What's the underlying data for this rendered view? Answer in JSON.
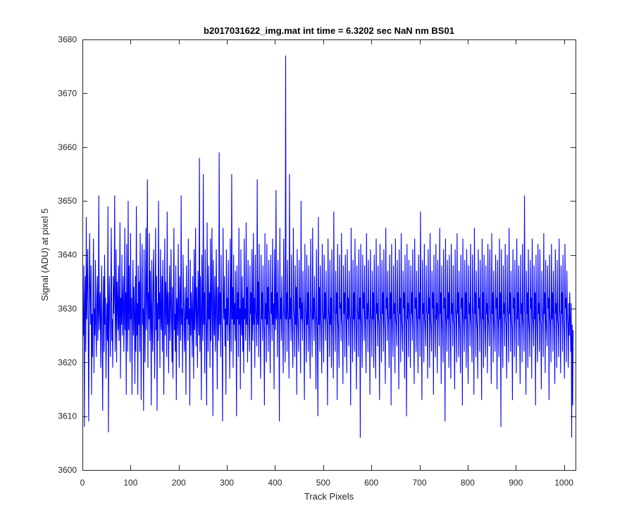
{
  "chart_data": {
    "type": "line",
    "title": "b2017031622_img.mat int time = 6.3202 sec  NaN nm BS01",
    "xlabel": "Track Pixels",
    "ylabel": "Signal (ADU) at pixel 5",
    "xlim": [
      0,
      1024
    ],
    "ylim": [
      3600,
      3680
    ],
    "xticks": [
      0,
      100,
      200,
      300,
      400,
      500,
      600,
      700,
      800,
      900,
      1000
    ],
    "yticks": [
      3600,
      3610,
      3620,
      3630,
      3640,
      3650,
      3660,
      3670,
      3680
    ],
    "grid": false,
    "legend": "none",
    "series": [
      {
        "color": "#0000ff",
        "x_start": 1,
        "x_step": 1,
        "values": [
          3629,
          3625,
          3638,
          3608,
          3631,
          3636,
          3622,
          3647,
          3628,
          3635,
          3641,
          3626,
          3609,
          3630,
          3644,
          3633,
          3627,
          3638,
          3614,
          3629,
          3621,
          3635,
          3643,
          3618,
          3630,
          3625,
          3639,
          3627,
          3621,
          3632,
          3636,
          3624,
          3629,
          3651,
          3626,
          3631,
          3633,
          3619,
          3628,
          3638,
          3624,
          3611,
          3629,
          3636,
          3622,
          3640,
          3627,
          3632,
          3617,
          3626,
          3631,
          3624,
          3649,
          3607,
          3630,
          3636,
          3628,
          3621,
          3633,
          3645,
          3624,
          3628,
          3619,
          3636,
          3629,
          3633,
          3651,
          3622,
          3628,
          3641,
          3620,
          3635,
          3631,
          3626,
          3638,
          3624,
          3629,
          3646,
          3617,
          3632,
          3627,
          3640,
          3625,
          3631,
          3636,
          3622,
          3628,
          3645,
          3626,
          3633,
          3614,
          3642,
          3629,
          3622,
          3650,
          3626,
          3638,
          3629,
          3620,
          3644,
          3628,
          3632,
          3614,
          3630,
          3639,
          3625,
          3634,
          3629,
          3616,
          3636,
          3622,
          3649,
          3625,
          3631,
          3614,
          3638,
          3627,
          3635,
          3622,
          3644,
          3629,
          3613,
          3633,
          3642,
          3627,
          3630,
          3611,
          3641,
          3628,
          3620,
          3634,
          3645,
          3626,
          3632,
          3654,
          3619,
          3633,
          3628,
          3644,
          3624,
          3637,
          3630,
          3612,
          3639,
          3627,
          3622,
          3635,
          3641,
          3628,
          3617,
          3630,
          3645,
          3626,
          3636,
          3611,
          3631,
          3624,
          3650,
          3628,
          3633,
          3619,
          3641,
          3629,
          3626,
          3636,
          3622,
          3639,
          3630,
          3614,
          3628,
          3643,
          3625,
          3635,
          3631,
          3621,
          3648,
          3627,
          3633,
          3618,
          3629,
          3638,
          3624,
          3630,
          3641,
          3628,
          3620,
          3634,
          3617,
          3631,
          3645,
          3626,
          3629,
          3622,
          3638,
          3613,
          3632,
          3630,
          3625,
          3642,
          3628,
          3619,
          3636,
          3631,
          3624,
          3651,
          3627,
          3630,
          3618,
          3640,
          3632,
          3626,
          3622,
          3634,
          3629,
          3614,
          3638,
          3628,
          3632,
          3624,
          3643,
          3627,
          3630,
          3612,
          3639,
          3625,
          3633,
          3629,
          3621,
          3636,
          3628,
          3617,
          3641,
          3626,
          3630,
          3645,
          3623,
          3634,
          3629,
          3619,
          3637,
          3631,
          3625,
          3658,
          3622,
          3636,
          3628,
          3613,
          3640,
          3630,
          3624,
          3655,
          3627,
          3633,
          3618,
          3641,
          3629,
          3626,
          3612,
          3646,
          3630,
          3622,
          3638,
          3628,
          3633,
          3619,
          3643,
          3624,
          3630,
          3645,
          3627,
          3610,
          3639,
          3631,
          3625,
          3636,
          3622,
          3629,
          3641,
          3628,
          3615,
          3634,
          3630,
          3624,
          3659,
          3627,
          3633,
          3621,
          3640,
          3629,
          3625,
          3609,
          3645,
          3631,
          3628,
          3636,
          3623,
          3630,
          3614,
          3641,
          3627,
          3632,
          3624,
          3639,
          3629,
          3626,
          3617,
          3643,
          3630,
          3622,
          3655,
          3628,
          3634,
          3619,
          3640,
          3627,
          3631,
          3624,
          3637,
          3629,
          3610,
          3638,
          3628,
          3633,
          3621,
          3645,
          3627,
          3630,
          3615,
          3641,
          3629,
          3625,
          3636,
          3622,
          3632,
          3618,
          3643,
          3628,
          3630,
          3624,
          3646,
          3627,
          3634,
          3620,
          3639,
          3630,
          3626,
          3622,
          3638,
          3629,
          3633,
          3613,
          3641,
          3628,
          3624,
          3644,
          3627,
          3632,
          3619,
          3640,
          3630,
          3628,
          3623,
          3654,
          3627,
          3635,
          3621,
          3642,
          3629,
          3626,
          3617,
          3640,
          3628,
          3633,
          3624,
          3638,
          3630,
          3625,
          3612,
          3644,
          3628,
          3631,
          3620,
          3642,
          3627,
          3634,
          3622,
          3639,
          3630,
          3626,
          3618,
          3640,
          3629,
          3633,
          3624,
          3643,
          3627,
          3631,
          3615,
          3641,
          3629,
          3626,
          3652,
          3628,
          3633,
          3621,
          3639,
          3630,
          3627,
          3609,
          3645,
          3628,
          3632,
          3624,
          3636,
          3629,
          3625,
          3618,
          3643,
          3630,
          3628,
          3620,
          3677,
          3628,
          3633,
          3622,
          3639,
          3630,
          3627,
          3617,
          3655,
          3628,
          3632,
          3624,
          3640,
          3629,
          3625,
          3619,
          3645,
          3630,
          3628,
          3621,
          3638,
          3627,
          3634,
          3614,
          3641,
          3629,
          3626,
          3622,
          3639,
          3630,
          3632,
          3618,
          3650,
          3628,
          3631,
          3624,
          3637,
          3629,
          3627,
          3613,
          3642,
          3630,
          3628,
          3620,
          3640,
          3627,
          3633,
          3622,
          3638,
          3629,
          3625,
          3617,
          3643,
          3630,
          3628,
          3621,
          3645,
          3628,
          3632,
          3624,
          3636,
          3630,
          3627,
          3615,
          3641,
          3629,
          3625,
          3610,
          3647,
          3627,
          3634,
          3622,
          3638,
          3629,
          3626,
          3618,
          3642,
          3630,
          3628,
          3620,
          3640,
          3628,
          3633,
          3624,
          3637,
          3629,
          3627,
          3612,
          3643,
          3630,
          3628,
          3621,
          3639,
          3627,
          3632,
          3619,
          3641,
          3629,
          3625,
          3617,
          3648,
          3630,
          3628,
          3622,
          3637,
          3629,
          3633,
          3613,
          3642,
          3628,
          3626,
          3619,
          3640,
          3630,
          3631,
          3624,
          3644,
          3628,
          3627,
          3616,
          3638,
          3629,
          3633,
          3621,
          3640,
          3630,
          3626,
          3618,
          3641,
          3628,
          3632,
          3623,
          3637,
          3629,
          3628,
          3612,
          3645,
          3630,
          3627,
          3620,
          3639,
          3628,
          3633,
          3622,
          3643,
          3629,
          3626,
          3615,
          3638,
          3630,
          3628,
          3621,
          3641,
          3628,
          3632,
          3606,
          3642,
          3629,
          3627,
          3619,
          3640,
          3630,
          3633,
          3624,
          3638,
          3629,
          3626,
          3618,
          3644,
          3628,
          3631,
          3622,
          3639,
          3630,
          3627,
          3614,
          3641,
          3629,
          3628,
          3621,
          3637,
          3628,
          3633,
          3619,
          3640,
          3630,
          3626,
          3617,
          3643,
          3629,
          3631,
          3623,
          3638,
          3628,
          3627,
          3613,
          3642,
          3630,
          3628,
          3620,
          3639,
          3629,
          3633,
          3622,
          3641,
          3628,
          3626,
          3616,
          3645,
          3630,
          3632,
          3624,
          3637,
          3629,
          3627,
          3619,
          3640,
          3628,
          3633,
          3612,
          3642,
          3630,
          3626,
          3621,
          3638,
          3629,
          3631,
          3618,
          3643,
          3628,
          3627,
          3623,
          3639,
          3630,
          3628,
          3615,
          3641,
          3629,
          3632,
          3620,
          3644,
          3628,
          3626,
          3622,
          3637,
          3630,
          3633,
          3617,
          3640,
          3629,
          3627,
          3610,
          3642,
          3628,
          3631,
          3621,
          3639,
          3630,
          3628,
          3619,
          3638,
          3629,
          3633,
          3624,
          3641,
          3628,
          3626,
          3616,
          3643,
          3630,
          3632,
          3622,
          3637,
          3629,
          3627,
          3618,
          3640,
          3628,
          3633,
          3621,
          3648,
          3630,
          3626,
          3613,
          3639,
          3629,
          3631,
          3620,
          3642,
          3628,
          3627,
          3623,
          3638,
          3630,
          3628,
          3617,
          3641,
          3629,
          3632,
          3619,
          3644,
          3628,
          3626,
          3622,
          3637,
          3630,
          3633,
          3614,
          3640,
          3629,
          3627,
          3621,
          3642,
          3628,
          3631,
          3618,
          3639,
          3630,
          3628,
          3623,
          3645,
          3629,
          3633,
          3616,
          3638,
          3628,
          3626,
          3620,
          3641,
          3630,
          3632,
          3609,
          3643,
          3629,
          3627,
          3622,
          3639,
          3628,
          3633,
          3619,
          3640,
          3630,
          3626,
          3617,
          3642,
          3629,
          3631,
          3623,
          3638,
          3628,
          3627,
          3615,
          3641,
          3630,
          3628,
          3620,
          3644,
          3629,
          3633,
          3621,
          3637,
          3628,
          3626,
          3618,
          3640,
          3630,
          3632,
          3612,
          3643,
          3629,
          3627,
          3622,
          3639,
          3628,
          3633,
          3619,
          3641,
          3630,
          3626,
          3616,
          3638,
          3629,
          3631,
          3623,
          3642,
          3628,
          3627,
          3620,
          3640,
          3630,
          3628,
          3614,
          3645,
          3629,
          3633,
          3621,
          3637,
          3628,
          3626,
          3617,
          3641,
          3630,
          3632,
          3622,
          3639,
          3629,
          3627,
          3613,
          3643,
          3628,
          3633,
          3619,
          3640,
          3630,
          3626,
          3621,
          3638,
          3629,
          3631,
          3618,
          3642,
          3628,
          3627,
          3623,
          3641,
          3630,
          3628,
          3616,
          3644,
          3629,
          3633,
          3620,
          3637,
          3628,
          3626,
          3622,
          3640,
          3630,
          3632,
          3615,
          3639,
          3629,
          3627,
          3621,
          3643,
          3628,
          3633,
          3608,
          3641,
          3630,
          3626,
          3619,
          3638,
          3629,
          3631,
          3623,
          3642,
          3628,
          3627,
          3617,
          3640,
          3630,
          3628,
          3620,
          3645,
          3629,
          3633,
          3622,
          3637,
          3628,
          3626,
          3613,
          3641,
          3630,
          3632,
          3621,
          3639,
          3629,
          3627,
          3618,
          3643,
          3628,
          3633,
          3623,
          3638,
          3630,
          3626,
          3616,
          3640,
          3629,
          3631,
          3620,
          3642,
          3628,
          3627,
          3622,
          3651,
          3630,
          3628,
          3614,
          3637,
          3629,
          3633,
          3619,
          3641,
          3628,
          3626,
          3621,
          3639,
          3630,
          3632,
          3617,
          3643,
          3629,
          3627,
          3623,
          3638,
          3628,
          3633,
          3612,
          3640,
          3630,
          3626,
          3620,
          3642,
          3629,
          3631,
          3622,
          3641,
          3628,
          3627,
          3615,
          3637,
          3630,
          3628,
          3621,
          3644,
          3629,
          3633,
          3618,
          3639,
          3628,
          3626,
          3623,
          3638,
          3630,
          3632,
          3613,
          3640,
          3629,
          3627,
          3620,
          3642,
          3628,
          3633,
          3622,
          3637,
          3630,
          3626,
          3616,
          3641,
          3629,
          3631,
          3619,
          3639,
          3628,
          3627,
          3621,
          3643,
          3630,
          3628,
          3618,
          3638,
          3629,
          3633,
          3622,
          3640,
          3628,
          3626,
          3617,
          3642,
          3630,
          3632,
          3620,
          3637,
          3629,
          3627,
          3619,
          3631,
          3625,
          3633,
          3628,
          3622,
          3631,
          3606,
          3627,
          3612,
          3626
        ]
      }
    ]
  }
}
